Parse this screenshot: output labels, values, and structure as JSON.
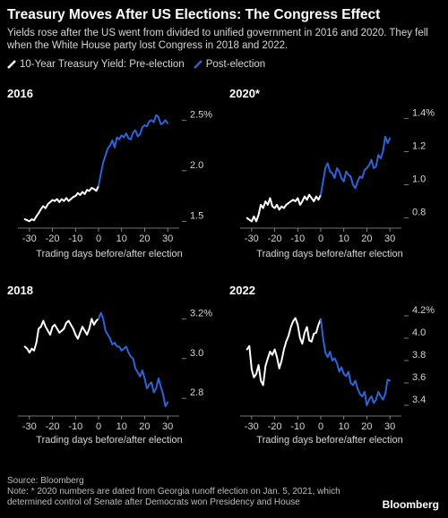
{
  "header": {
    "title": "Treasury Moves After US Elections: The Congress Effect",
    "subtitle": "Yields rose after the US went from divided to unified government in 2016 and 2020. They fell when the White House party lost Congress in 2018 and 2022.",
    "legend_pre": "10-Year Treasury Yield: Pre-election",
    "legend_post": "Post-election"
  },
  "colors": {
    "pre": "#ffffff",
    "post": "#2e63d8",
    "axis": "#9a9a9a",
    "text": "#d6d6d6"
  },
  "chart_data": [
    {
      "type": "line",
      "panel_title": "2016",
      "xlabel": "Trading days before/after election",
      "x_ticks": [
        "-30",
        "-20",
        "-10",
        "0",
        "10",
        "20",
        "30"
      ],
      "y_tick_values": [
        1.5,
        2.0,
        2.5
      ],
      "y_tick_labels": [
        "1.5",
        "2.0",
        "2.5%"
      ],
      "xlim": [
        -35,
        35
      ],
      "ylim": [
        1.45,
        2.6
      ],
      "series": [
        {
          "name": "Pre-election",
          "x": [
            -32,
            -30,
            -29,
            -28,
            -27,
            -26,
            -25,
            -24,
            -23,
            -22,
            -21,
            -20,
            -19,
            -18,
            -17,
            -16,
            -15,
            -14,
            -13,
            -12,
            -11,
            -10,
            -9,
            -8,
            -7,
            -6,
            -5,
            -4,
            -3,
            -2,
            -1,
            0
          ],
          "y": [
            1.52,
            1.5,
            1.52,
            1.51,
            1.55,
            1.58,
            1.62,
            1.65,
            1.63,
            1.67,
            1.69,
            1.71,
            1.7,
            1.72,
            1.69,
            1.72,
            1.7,
            1.73,
            1.7,
            1.72,
            1.74,
            1.75,
            1.78,
            1.76,
            1.79,
            1.77,
            1.81,
            1.8,
            1.83,
            1.82,
            1.8,
            1.85
          ]
        },
        {
          "name": "Post-election",
          "x": [
            0,
            1,
            2,
            3,
            4,
            5,
            6,
            7,
            8,
            9,
            10,
            11,
            12,
            13,
            14,
            15,
            16,
            17,
            18,
            19,
            20,
            21,
            22,
            23,
            24,
            25,
            26,
            27,
            28,
            29,
            30
          ],
          "y": [
            1.85,
            1.97,
            2.08,
            2.15,
            2.22,
            2.25,
            2.3,
            2.23,
            2.33,
            2.31,
            2.35,
            2.33,
            2.37,
            2.32,
            2.31,
            2.38,
            2.4,
            2.34,
            2.36,
            2.43,
            2.45,
            2.44,
            2.49,
            2.5,
            2.48,
            2.55,
            2.53,
            2.46,
            2.47,
            2.5,
            2.47
          ]
        }
      ]
    },
    {
      "type": "line",
      "panel_title": "2020*",
      "xlabel": "Trading days before/after election",
      "x_ticks": [
        "-30",
        "-20",
        "-10",
        "0",
        "10",
        "20",
        "30"
      ],
      "y_tick_values": [
        0.8,
        1.0,
        1.2,
        1.4
      ],
      "y_tick_labels": [
        "0.8",
        "1.0",
        "1.2",
        "1.4%"
      ],
      "xlim": [
        -35,
        35
      ],
      "ylim": [
        0.75,
        1.45
      ],
      "series": [
        {
          "name": "Pre-election",
          "x": [
            -32,
            -31,
            -30,
            -29,
            -28,
            -27,
            -26,
            -25,
            -24,
            -23,
            -22,
            -21,
            -20,
            -19,
            -18,
            -17,
            -16,
            -15,
            -14,
            -13,
            -12,
            -11,
            -10,
            -9,
            -8,
            -7,
            -6,
            -5,
            -4,
            -3,
            -2,
            -1,
            0
          ],
          "y": [
            0.8,
            0.79,
            0.78,
            0.81,
            0.78,
            0.82,
            0.88,
            0.86,
            0.9,
            0.88,
            0.92,
            0.87,
            0.86,
            0.88,
            0.85,
            0.87,
            0.86,
            0.88,
            0.89,
            0.9,
            0.91,
            0.9,
            0.92,
            0.88,
            0.9,
            0.93,
            0.91,
            0.94,
            0.92,
            0.9,
            0.93,
            0.91,
            0.94
          ]
        },
        {
          "name": "Post-election",
          "x": [
            0,
            1,
            2,
            3,
            4,
            5,
            6,
            7,
            8,
            9,
            10,
            11,
            12,
            13,
            14,
            15,
            16,
            17,
            18,
            19,
            20,
            21,
            22,
            23,
            24,
            25,
            26,
            27,
            28,
            29,
            30
          ],
          "y": [
            0.94,
            1.02,
            1.1,
            1.13,
            1.08,
            1.07,
            1.04,
            1.1,
            1.08,
            1.04,
            1.02,
            1.08,
            1.06,
            1.05,
            1.0,
            0.98,
            1.02,
            1.05,
            1.04,
            1.09,
            1.1,
            1.12,
            1.15,
            1.1,
            1.11,
            1.18,
            1.16,
            1.2,
            1.29,
            1.25,
            1.28
          ]
        }
      ]
    },
    {
      "type": "line",
      "panel_title": "2018",
      "xlabel": "Trading days before/after election",
      "x_ticks": [
        "-30",
        "-20",
        "-10",
        "0",
        "10",
        "20",
        "30"
      ],
      "y_tick_values": [
        2.8,
        3.0,
        3.2
      ],
      "y_tick_labels": [
        "2.8",
        "3.0",
        "3.2%"
      ],
      "xlim": [
        -35,
        35
      ],
      "ylim": [
        2.72,
        3.26
      ],
      "series": [
        {
          "name": "Pre-election",
          "x": [
            -32,
            -31,
            -30,
            -29,
            -28,
            -27,
            -26,
            -25,
            -24,
            -23,
            -22,
            -21,
            -20,
            -19,
            -18,
            -17,
            -16,
            -15,
            -14,
            -13,
            -12,
            -11,
            -10,
            -9,
            -8,
            -7,
            -6,
            -5,
            -4,
            -3,
            -2,
            -1,
            0
          ],
          "y": [
            3.06,
            3.05,
            3.03,
            3.05,
            3.04,
            3.08,
            3.15,
            3.16,
            3.19,
            3.16,
            3.14,
            3.12,
            3.16,
            3.17,
            3.15,
            3.13,
            3.14,
            3.15,
            3.18,
            3.19,
            3.17,
            3.15,
            3.12,
            3.1,
            3.13,
            3.16,
            3.14,
            3.12,
            3.15,
            3.2,
            3.17,
            3.19,
            3.2
          ]
        },
        {
          "name": "Post-election",
          "x": [
            0,
            1,
            2,
            3,
            4,
            5,
            6,
            7,
            8,
            9,
            10,
            11,
            12,
            13,
            14,
            15,
            16,
            17,
            18,
            19,
            20,
            21,
            22,
            23,
            24,
            25,
            26,
            27,
            28,
            29,
            30
          ],
          "y": [
            3.2,
            3.23,
            3.2,
            3.14,
            3.12,
            3.1,
            3.07,
            3.08,
            3.06,
            3.06,
            3.04,
            3.05,
            3.06,
            3.03,
            3.01,
            3.0,
            2.95,
            2.93,
            2.91,
            2.94,
            2.9,
            2.85,
            2.87,
            2.88,
            2.83,
            2.85,
            2.9,
            2.86,
            2.82,
            2.76,
            2.78
          ]
        }
      ]
    },
    {
      "type": "line",
      "panel_title": "2022",
      "xlabel": "Trading days before/after election",
      "x_ticks": [
        "-30",
        "-20",
        "-10",
        "0",
        "10",
        "20",
        "30"
      ],
      "y_tick_values": [
        3.4,
        3.6,
        3.8,
        4.0,
        4.2
      ],
      "y_tick_labels": [
        "3.4",
        "3.6",
        "3.8",
        "4.0",
        "4.2%"
      ],
      "xlim": [
        -35,
        35
      ],
      "ylim": [
        3.32,
        4.28
      ],
      "series": [
        {
          "name": "Pre-election",
          "x": [
            -32,
            -31,
            -30,
            -29,
            -28,
            -27,
            -26,
            -25,
            -24,
            -23,
            -22,
            -21,
            -20,
            -19,
            -18,
            -17,
            -16,
            -15,
            -14,
            -13,
            -12,
            -11,
            -10,
            -9,
            -8,
            -7,
            -6,
            -5,
            -4,
            -3,
            -2,
            -1,
            0
          ],
          "y": [
            3.9,
            3.93,
            3.72,
            3.65,
            3.68,
            3.76,
            3.62,
            3.58,
            3.75,
            3.82,
            3.88,
            3.85,
            3.9,
            3.83,
            3.73,
            3.8,
            3.9,
            3.97,
            4.02,
            4.1,
            4.15,
            4.18,
            4.12,
            4.0,
            3.95,
            4.05,
            4.1,
            3.98,
            3.97,
            4.04,
            4.05,
            4.12,
            4.17
          ]
        },
        {
          "name": "Post-election",
          "x": [
            0,
            1,
            2,
            3,
            4,
            5,
            6,
            7,
            8,
            9,
            10,
            11,
            12,
            13,
            14,
            15,
            16,
            17,
            18,
            19,
            20,
            21,
            22,
            23,
            24,
            25,
            26,
            27,
            28,
            29,
            30
          ],
          "y": [
            4.17,
            4.0,
            3.87,
            3.83,
            3.88,
            3.8,
            3.82,
            3.78,
            3.7,
            3.74,
            3.68,
            3.66,
            3.7,
            3.6,
            3.58,
            3.62,
            3.55,
            3.5,
            3.48,
            3.52,
            3.4,
            3.45,
            3.48,
            3.42,
            3.45,
            3.52,
            3.48,
            3.45,
            3.5,
            3.63,
            3.62
          ]
        }
      ]
    }
  ],
  "footer": {
    "source": "Source: Bloomberg",
    "note": "Note: * 2020 numbers are dated from Georgia runoff election on Jan. 5, 2021, which determined control of Senate after Democrats won Presidency and House",
    "brand": "Bloomberg"
  }
}
